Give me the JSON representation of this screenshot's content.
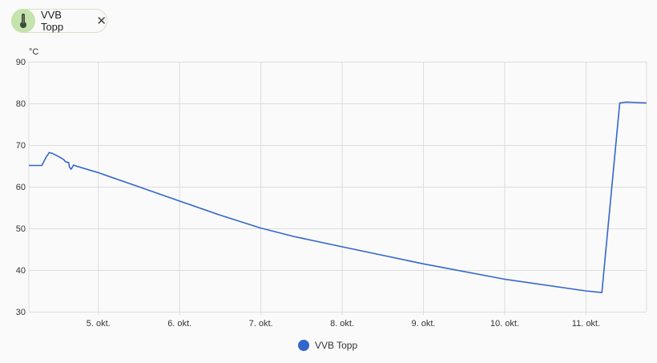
{
  "entity_chip": {
    "label": "VVB Topp",
    "icon": "thermometer-icon",
    "close_icon": "close-icon"
  },
  "colors": {
    "series": "#3366cc",
    "grid": "#dddddd",
    "chip_avatar": "#c5e3ad"
  },
  "chart_data": {
    "type": "line",
    "ylabel": "°C",
    "ylim": [
      30,
      90
    ],
    "yticks": [
      30,
      40,
      50,
      60,
      70,
      80,
      90
    ],
    "xlim": [
      4.15,
      11.75
    ],
    "xticks": [
      {
        "value": 5,
        "label": "5. okt."
      },
      {
        "value": 6,
        "label": "6. okt."
      },
      {
        "value": 7,
        "label": "7. okt."
      },
      {
        "value": 8,
        "label": "8. okt."
      },
      {
        "value": 9,
        "label": "9. okt."
      },
      {
        "value": 10,
        "label": "10. okt."
      },
      {
        "value": 11,
        "label": "11. okt."
      }
    ],
    "grid": true,
    "legend_position": "bottom",
    "series": [
      {
        "name": "VVB Topp",
        "points": [
          [
            4.15,
            65.1
          ],
          [
            4.31,
            65.1
          ],
          [
            4.36,
            67.0
          ],
          [
            4.4,
            68.2
          ],
          [
            4.44,
            68.0
          ],
          [
            4.52,
            67.2
          ],
          [
            4.58,
            66.5
          ],
          [
            4.6,
            66.0
          ],
          [
            4.64,
            65.8
          ],
          [
            4.65,
            64.7
          ],
          [
            4.67,
            64.2
          ],
          [
            4.7,
            65.2
          ],
          [
            4.74,
            64.9
          ],
          [
            5.0,
            63.4
          ],
          [
            5.5,
            60.0
          ],
          [
            6.0,
            56.6
          ],
          [
            6.5,
            53.2
          ],
          [
            7.0,
            50.1
          ],
          [
            7.4,
            48.1
          ],
          [
            8.0,
            45.6
          ],
          [
            9.0,
            41.5
          ],
          [
            10.0,
            37.8
          ],
          [
            11.0,
            35.0
          ],
          [
            11.2,
            34.6
          ],
          [
            11.42,
            80.1
          ],
          [
            11.5,
            80.3
          ],
          [
            11.75,
            80.1
          ]
        ]
      }
    ]
  }
}
